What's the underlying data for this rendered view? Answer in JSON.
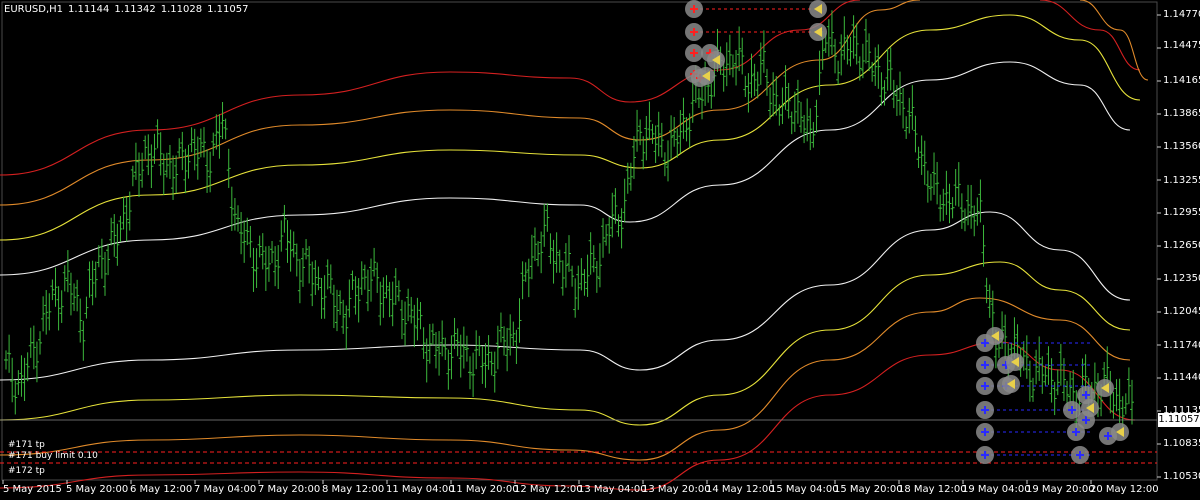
{
  "header": {
    "symbol_timeframe": "EURUSD,H1",
    "open": "1.11144",
    "high": "1.11342",
    "low": "1.11028",
    "close": "1.11057"
  },
  "price_axis": {
    "labels": [
      "1.14770",
      "1.14475",
      "1.14165",
      "1.13865",
      "1.13560",
      "1.13255",
      "1.12955",
      "1.12650",
      "1.12350",
      "1.12045",
      "1.11740",
      "1.11440",
      "1.11135",
      "1.10835",
      "1.10530"
    ],
    "current_price": "1.11057"
  },
  "time_axis": {
    "labels": [
      "5 May 2015",
      "5 May 20:00",
      "6 May 12:00",
      "7 May 04:00",
      "7 May 20:00",
      "8 May 12:00",
      "11 May 04:00",
      "11 May 20:00",
      "12 May 12:00",
      "13 May 04:00",
      "13 May 20:00",
      "14 May 12:00",
      "15 May 04:00",
      "15 May 20:00",
      "18 May 12:00",
      "19 May 04:00",
      "19 May 20:00",
      "20 May 12:00"
    ]
  },
  "order_labels": {
    "buy_limit_1": "#171 buy limit 0.10",
    "tp_1": "#171 tp",
    "tp_2": "#172 tp"
  },
  "colors": {
    "background": "#000000",
    "candle": "#3cb93c",
    "band_red": "#d42020",
    "band_orange": "#e08a2a",
    "band_yellow": "#e6e23a",
    "band_white": "#f0f0f0",
    "grid": "#4a4a4a",
    "order_line_red": "#ff2020",
    "order_line_blue": "#2a2aff"
  },
  "chart_data": {
    "type": "candlestick",
    "series_name": "EURUSD,H1",
    "y_unit": "price",
    "ylim": [
      1.104,
      1.149
    ],
    "grid": true,
    "close_approx": [
      1.1145,
      1.113,
      1.117,
      1.121,
      1.1225,
      1.119,
      1.1245,
      1.126,
      1.1305,
      1.135,
      1.1345,
      1.133,
      1.1355,
      1.134,
      1.1375,
      1.1275,
      1.1255,
      1.124,
      1.127,
      1.1245,
      1.123,
      1.1215,
      1.1195,
      1.123,
      1.1225,
      1.121,
      1.12,
      1.1175,
      1.116,
      1.1165,
      1.1155,
      1.115,
      1.1165,
      1.118,
      1.1255,
      1.127,
      1.124,
      1.1225,
      1.124,
      1.1275,
      1.13,
      1.137,
      1.136,
      1.135,
      1.138,
      1.1405,
      1.1425,
      1.144,
      1.1415,
      1.1425,
      1.139,
      1.1395,
      1.136,
      1.1455,
      1.144,
      1.145,
      1.143,
      1.1415,
      1.1395,
      1.1355,
      1.131,
      1.1305,
      1.13,
      1.1285,
      1.1165,
      1.117,
      1.1145,
      1.114,
      1.1135,
      1.112,
      1.1125,
      1.113,
      1.1115,
      1.1105
    ]
  }
}
